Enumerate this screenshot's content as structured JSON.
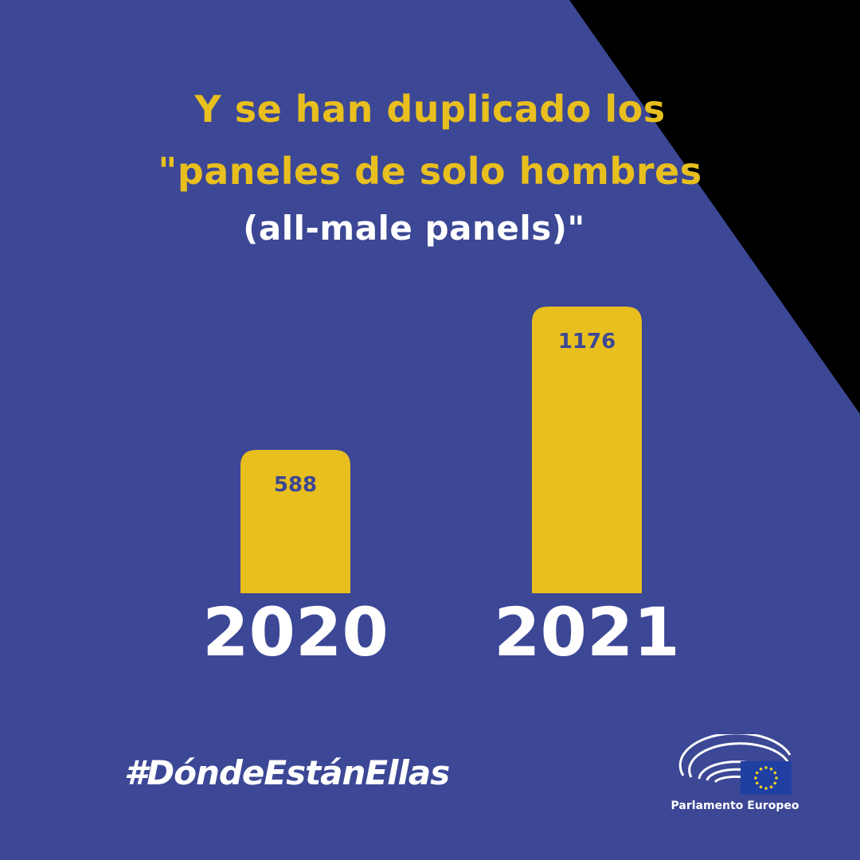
{
  "colors": {
    "background": "#3c4795",
    "corner": "#000000",
    "accent": "#e8bf1e",
    "text_light": "#ffffff",
    "bar_label": "#3c4795",
    "eu_flag": "#1f3fa3",
    "eu_star": "#f2d21a"
  },
  "heading": {
    "line1": "Y se han duplicado los",
    "line2": "\"paneles de solo hombres",
    "line3": "(all-male panels)\""
  },
  "chart_data": {
    "type": "bar",
    "categories": [
      "2020",
      "2021"
    ],
    "values": [
      588,
      1176
    ],
    "ylim": [
      0,
      1176
    ]
  },
  "footer": {
    "hashtag": "#DóndeEstánEllas",
    "logo_icon": "european-parliament-hemicycle-icon",
    "logo_caption": "Parlamento Europeo"
  }
}
